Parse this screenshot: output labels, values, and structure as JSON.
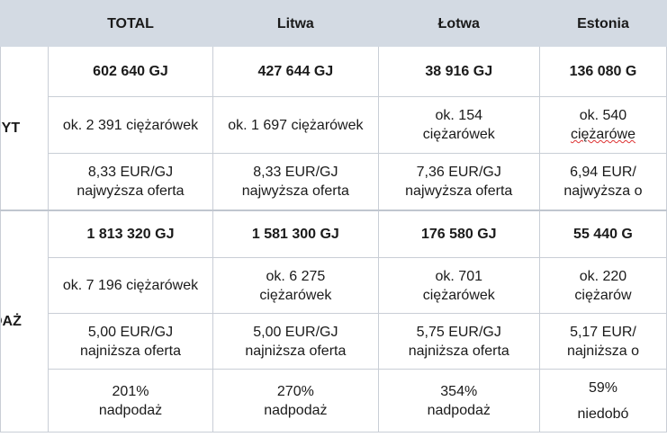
{
  "header": {
    "total": "TOTAL",
    "litwa": "Litwa",
    "lotwa": "Łotwa",
    "estonia": "Estonia"
  },
  "popyt": {
    "label": "PYT",
    "energy": [
      "602 640 GJ",
      "427 644 GJ",
      "38 916 GJ",
      "136 080 G"
    ],
    "trucks_line1": [
      "ok. 2 391 ciężarówek",
      "ok. 1 697 ciężarówek",
      "ok. 154",
      "ok. 540"
    ],
    "trucks_line2": [
      "",
      "",
      "ciężarówek",
      "ciężarówe"
    ],
    "price_line1": [
      "8,33 EUR/GJ",
      "8,33 EUR/GJ",
      "7,36 EUR/GJ",
      "6,94 EUR/"
    ],
    "price_line2": [
      "najwyższa oferta",
      "najwyższa oferta",
      "najwyższa oferta",
      "najwyższa o"
    ]
  },
  "podaz": {
    "label": "DAŻ",
    "energy": [
      "1 813 320 GJ",
      "1 581 300 GJ",
      "176 580 GJ",
      "55 440 G"
    ],
    "trucks_line1": [
      "ok. 7 196 ciężarówek",
      "ok. 6 275",
      "ok. 701",
      "ok. 220"
    ],
    "trucks_line2": [
      "",
      "ciężarówek",
      "ciężarówek",
      "ciężarów"
    ],
    "price_line1": [
      "5,00 EUR/GJ",
      "5,00 EUR/GJ",
      "5,75 EUR/GJ",
      "5,17 EUR/"
    ],
    "price_line2": [
      "najniższa oferta",
      "najniższa oferta",
      "najniższa oferta",
      "najniższa o"
    ],
    "balance_line1": [
      "201%",
      "270%",
      "354%",
      "59%"
    ],
    "balance_line2": [
      "nadpodaż",
      "nadpodaż",
      "nadpodaż",
      "niedobó"
    ]
  }
}
